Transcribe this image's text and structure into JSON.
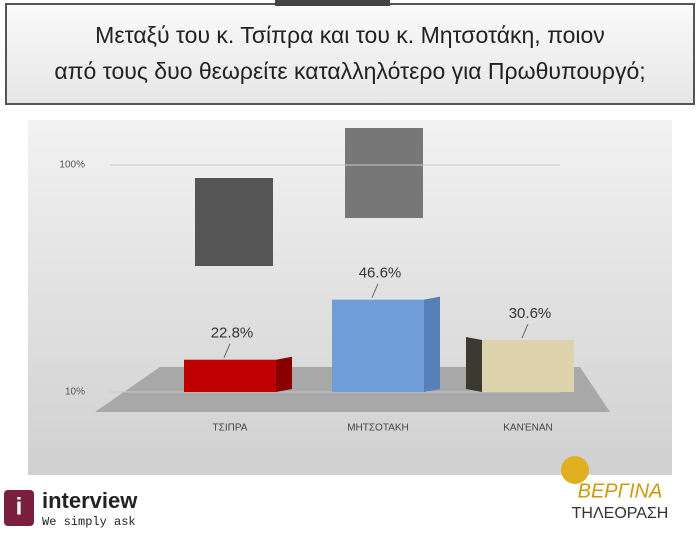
{
  "chart_data": {
    "type": "bar",
    "title": "Μεταξύ του κ. Τσίπρα και του κ. Μητσοτάκη, ποιον από τους δυο θεωρείτε καταλληλότερο για Πρωθυπουργό;",
    "categories": [
      "ΤΣΙΠΡΑ",
      "ΜΗΤΣΟΤΑΚΗ",
      "ΚΑΝΈΝΑΝ"
    ],
    "values": [
      22.8,
      46.6,
      30.6
    ],
    "value_labels": [
      "22.8%",
      "46.6%",
      "30.6%"
    ],
    "colors": [
      "#c00000",
      "#6f9dd8",
      "#ddd3ad"
    ],
    "ylim": [
      10,
      100
    ],
    "yticks": [
      {
        "value": 10,
        "label": "10%"
      },
      {
        "value": 100,
        "label": "100%"
      }
    ],
    "grid": true
  },
  "branding": {
    "left_name": "interview",
    "left_tagline": "We simply ask",
    "right_name": "ΒΕΡΓΙΝΑ",
    "right_sub": "ΤΗΛΕΟΡΑΣΗ"
  }
}
